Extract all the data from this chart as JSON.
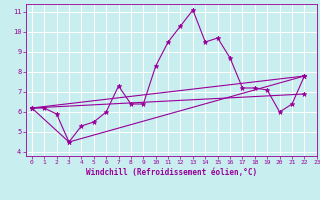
{
  "xlabel": "Windchill (Refroidissement éolien,°C)",
  "background_color": "#c8eef0",
  "line_color": "#990099",
  "grid_color": "#ffffff",
  "xlim": [
    -0.5,
    23
  ],
  "ylim": [
    3.8,
    11.4
  ],
  "yticks": [
    4,
    5,
    6,
    7,
    8,
    9,
    10,
    11
  ],
  "xticks": [
    0,
    1,
    2,
    3,
    4,
    5,
    6,
    7,
    8,
    9,
    10,
    11,
    12,
    13,
    14,
    15,
    16,
    17,
    18,
    19,
    20,
    21,
    22,
    23
  ],
  "series": [
    {
      "x": [
        0,
        1,
        2,
        3,
        4,
        5,
        6,
        7,
        8,
        9,
        10,
        11,
        12,
        13,
        14,
        15,
        16,
        17,
        18,
        19,
        20,
        21,
        22
      ],
      "y": [
        6.2,
        6.2,
        5.9,
        4.5,
        5.3,
        5.5,
        6.0,
        7.3,
        6.4,
        6.4,
        8.3,
        9.5,
        10.3,
        11.1,
        9.5,
        9.7,
        8.7,
        7.2,
        7.2,
        7.1,
        6.0,
        6.4,
        7.8
      ]
    },
    {
      "x": [
        0,
        22
      ],
      "y": [
        6.2,
        7.8
      ]
    },
    {
      "x": [
        0,
        3,
        22
      ],
      "y": [
        6.2,
        4.5,
        7.8
      ]
    },
    {
      "x": [
        0,
        22
      ],
      "y": [
        6.2,
        6.9
      ]
    }
  ]
}
